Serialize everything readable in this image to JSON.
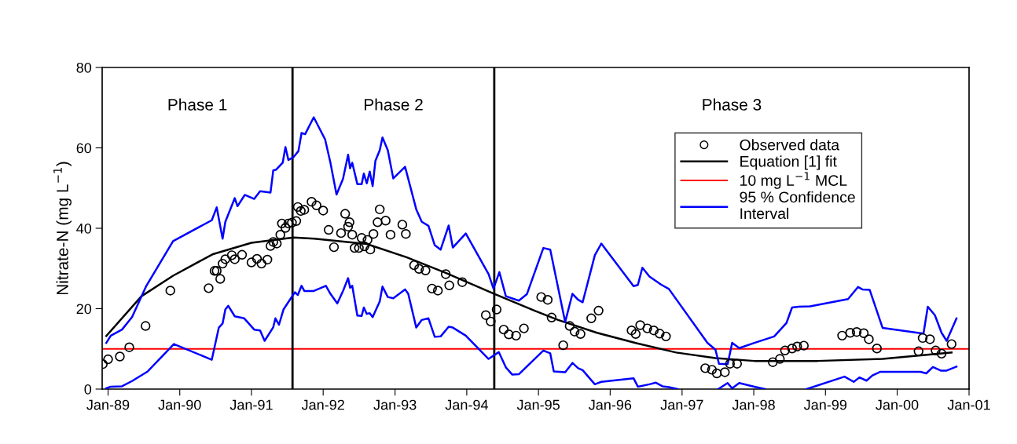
{
  "chart_data": {
    "type": "scatter",
    "ylabel": "Nitrate-N (mg L$^{−1}$)",
    "xlim": [
      "1988-12-02",
      "2001-01-01"
    ],
    "ylim": [
      0,
      80
    ],
    "xticks": [
      {
        "value": "1989-01-01",
        "label": "Jan-89"
      },
      {
        "value": "1990-01-01",
        "label": "Jan-90"
      },
      {
        "value": "1991-01-01",
        "label": "Jan-91"
      },
      {
        "value": "1992-01-01",
        "label": "Jan-92"
      },
      {
        "value": "1993-01-01",
        "label": "Jan-93"
      },
      {
        "value": "1994-01-01",
        "label": "Jan-94"
      },
      {
        "value": "1995-01-01",
        "label": "Jan-95"
      },
      {
        "value": "1996-01-01",
        "label": "Jan-96"
      },
      {
        "value": "1997-01-01",
        "label": "Jan-97"
      },
      {
        "value": "1998-01-01",
        "label": "Jan-98"
      },
      {
        "value": "1999-01-01",
        "label": "Jan-99"
      },
      {
        "value": "2000-01-01",
        "label": "Jan-00"
      },
      {
        "value": "2001-01-01",
        "label": "Jan-01"
      }
    ],
    "yticks": [
      0,
      20,
      40,
      60,
      80
    ],
    "grid": false,
    "legend": "top right",
    "series": [
      {
        "name": "Observed data",
        "marker": "circle",
        "color": "#000000",
        "x": [
          "1988-12-05",
          "1989-01-01",
          "1989-03-02",
          "1989-04-19",
          "1989-07-11",
          "1989-11-14",
          "1990-05-28",
          "1990-06-27",
          "1990-07-08",
          "1990-07-26",
          "1990-08-07",
          "1990-08-21",
          "1990-09-23",
          "1990-10-08",
          "1990-11-14",
          "1991-01-01",
          "1991-01-29",
          "1991-02-21",
          "1991-03-23",
          "1991-04-08",
          "1991-04-22",
          "1991-05-10",
          "1991-05-28",
          "1991-06-05",
          "1991-06-23",
          "1991-07-08",
          "1991-07-26",
          "1991-08-17",
          "1991-08-25",
          "1991-09-09",
          "1991-09-27",
          "1991-11-03",
          "1991-11-28",
          "1992-01-01",
          "1992-01-29",
          "1992-02-25",
          "1992-04-01",
          "1992-04-22",
          "1992-05-07",
          "1992-05-14",
          "1992-05-28",
          "1992-06-09",
          "1992-07-01",
          "1992-07-15",
          "1992-07-29",
          "1992-08-14",
          "1992-08-28",
          "1992-09-13",
          "1992-10-04",
          "1992-10-15",
          "1992-11-14",
          "1992-12-09",
          "1993-02-07",
          "1993-02-25",
          "1993-04-08",
          "1993-05-03",
          "1993-06-05",
          "1993-07-08",
          "1993-08-07",
          "1993-09-16",
          "1993-10-04",
          "1993-12-09",
          "1994-04-08",
          "1994-05-03",
          "1994-06-02",
          "1994-07-08",
          "1994-08-03",
          "1994-09-09",
          "1994-10-19",
          "1995-01-15",
          "1995-02-17",
          "1995-03-09",
          "1995-05-07",
          "1995-06-09",
          "1995-07-04",
          "1995-08-03",
          "1995-09-27",
          "1995-11-03",
          "1996-04-19",
          "1996-05-10",
          "1996-06-02",
          "1996-07-08",
          "1996-08-10",
          "1996-09-09",
          "1996-10-11",
          "1997-04-29",
          "1997-06-02",
          "1997-06-27",
          "1997-08-07",
          "1997-09-02",
          "1997-10-08",
          "1998-04-08",
          "1998-05-14",
          "1998-06-09",
          "1998-07-15",
          "1998-08-10",
          "1998-09-13",
          "1999-03-27",
          "1999-05-07",
          "1999-06-09",
          "1999-07-15",
          "1999-08-10",
          "1999-09-20",
          "2000-04-19",
          "2000-05-10",
          "2000-06-16",
          "2000-07-15",
          "2000-08-14",
          "2000-10-04"
        ],
        "values": [
          6.2,
          7.4,
          8.1,
          10.4,
          15.7,
          24.5,
          25.1,
          29.4,
          29.4,
          27.4,
          31.2,
          32.3,
          33.3,
          32.3,
          33.4,
          31.5,
          32.4,
          31.2,
          32.2,
          35.6,
          36.6,
          36.2,
          38.4,
          41.2,
          40.1,
          41.2,
          41.4,
          41.8,
          45.3,
          44.3,
          44.6,
          46.6,
          45.7,
          44.4,
          39.6,
          35.3,
          38.8,
          43.6,
          40.4,
          41.5,
          38.4,
          35.1,
          35.1,
          37.6,
          35.5,
          37.1,
          34.7,
          38.6,
          41.5,
          44.7,
          41.9,
          38.4,
          40.9,
          38.6,
          30.8,
          29.9,
          29.5,
          25.0,
          24.5,
          28.6,
          25.8,
          26.6,
          18.4,
          16.8,
          19.8,
          14.8,
          13.6,
          13.3,
          15.1,
          22.9,
          22.2,
          17.8,
          10.9,
          15.7,
          14.3,
          13.7,
          17.6,
          19.5,
          14.6,
          13.7,
          15.9,
          15.1,
          14.6,
          13.8,
          13.1,
          5.2,
          4.8,
          3.9,
          4.2,
          6.3,
          6.3,
          6.7,
          7.5,
          9.6,
          10.1,
          10.6,
          10.8,
          13.3,
          14.0,
          14.2,
          13.9,
          12.4,
          10.1,
          9.4,
          12.7,
          12.4,
          9.6,
          8.8,
          11.2
        ]
      },
      {
        "name": "Equation [1] fit",
        "type": "line",
        "color": "#000000",
        "x": [
          "1988-12-23",
          "1989-06-20",
          "1989-11-28",
          "1990-06-16",
          "1991-01-01",
          "1991-08-03",
          "1991-11-17",
          "1992-08-10",
          "1993-02-28",
          "1993-09-16",
          "1994-05-21",
          "1994-12-13",
          "1995-04-11",
          "1995-10-26",
          "1996-05-14",
          "1996-12-02",
          "1997-06-20",
          "1998-01-04",
          "1998-11-21",
          "1999-10-19",
          "2000-10-04"
        ],
        "values": [
          13.2,
          23.1,
          28.2,
          33.5,
          36.4,
          37.7,
          37.4,
          36.1,
          32.8,
          28.9,
          23.7,
          19.5,
          17.2,
          14.0,
          11.4,
          9.1,
          7.7,
          7.0,
          7.0,
          7.5,
          9.1
        ]
      },
      {
        "name": "95 % Confidence\nInterval",
        "type": "line",
        "color": "#0000ff",
        "x": [
          "1988-12-23",
          "1989-01-15",
          "1989-03-13",
          "1989-05-03",
          "1989-07-15",
          "1989-11-28",
          "1990-06-13",
          "1990-07-08",
          "1990-08-07",
          "1990-08-21",
          "1990-10-08",
          "1990-10-22",
          "1990-11-28",
          "1991-01-15",
          "1991-02-14",
          "1991-04-08",
          "1991-04-22",
          "1991-05-07",
          "1991-06-09",
          "1991-06-23",
          "1991-07-08",
          "1991-08-03",
          "1991-08-28",
          "1991-09-13",
          "1991-10-01",
          "1991-11-14",
          "1992-01-11",
          "1992-02-07",
          "1992-03-09",
          "1992-04-11",
          "1992-05-07",
          "1992-05-17",
          "1992-05-28",
          "1992-06-23",
          "1992-07-15",
          "1992-07-26",
          "1992-08-10",
          "1992-08-25",
          "1992-09-09",
          "1992-09-23",
          "1992-10-15",
          "1992-10-29",
          "1992-11-25",
          "1992-12-23",
          "1993-02-21",
          "1993-04-19",
          "1993-05-17",
          "1993-06-20",
          "1993-07-22",
          "1993-08-21",
          "1993-10-01",
          "1993-10-22",
          "1993-12-27",
          "1994-04-22",
          "1994-05-17",
          "1994-06-16",
          "1994-07-19",
          "1994-09-23",
          "1994-11-03",
          "1995-01-26",
          "1995-03-02",
          "1995-05-17",
          "1995-06-23",
          "1995-07-22",
          "1995-08-14",
          "1995-10-15",
          "1995-11-17",
          "1996-04-29",
          "1996-05-21",
          "1996-06-13",
          "1996-07-19",
          "1996-09-16",
          "1996-10-26",
          "1997-05-10",
          "1997-06-20",
          "1997-07-08",
          "1997-08-21",
          "1997-09-13",
          "1997-10-19",
          "1998-01-04",
          "1998-04-15",
          "1998-06-16",
          "1998-07-15",
          "1998-08-17",
          "1998-10-15",
          "1999-04-26",
          "1999-06-16",
          "1999-07-08",
          "1999-08-14",
          "1999-10-19",
          "2000-05-14",
          "2000-06-05",
          "2000-07-11",
          "2000-08-14",
          "2000-09-09",
          "2000-10-29"
        ],
        "values": [
          11.5,
          13.3,
          14.8,
          17.9,
          25.7,
          36.8,
          42.0,
          45.2,
          37.4,
          41.6,
          47.5,
          45.5,
          48.3,
          47.3,
          49.2,
          48.9,
          54.4,
          54.6,
          56.3,
          60.2,
          57.0,
          57.7,
          59.2,
          63.7,
          63.4,
          67.6,
          62.1,
          56.3,
          48.4,
          52.3,
          58.3,
          54.9,
          56.3,
          51.0,
          51.0,
          53.6,
          51.2,
          54.1,
          50.5,
          56.8,
          59.4,
          62.6,
          59.4,
          52.4,
          55.3,
          44.7,
          41.6,
          40.6,
          35.8,
          34.7,
          40.7,
          35.2,
          38.7,
          28.6,
          25.0,
          29.1,
          23.1,
          22.0,
          23.6,
          35.1,
          34.7,
          16.7,
          23.7,
          22.2,
          21.6,
          33.3,
          36.2,
          25.6,
          25.9,
          30.2,
          28.0,
          26.0,
          24.9,
          11.5,
          9.8,
          6.3,
          6.2,
          11.5,
          10.2,
          11.5,
          13.1,
          16.4,
          20.3,
          20.5,
          20.6,
          22.4,
          25.4,
          24.8,
          24.7,
          15.2,
          13.8,
          20.5,
          18.4,
          14.0,
          12.0,
          17.6
        ]
      },
      {
        "type": "line",
        "color": "#0000ff",
        "x": [
          "1988-12-23",
          "1989-01-15",
          "1989-03-13",
          "1989-05-03",
          "1989-07-22",
          "1989-12-02",
          "1990-06-13",
          "1990-07-19",
          "1990-08-07",
          "1990-08-21",
          "1990-09-05",
          "1990-10-08",
          "1990-11-25",
          "1991-01-15",
          "1991-02-14",
          "1991-03-09",
          "1991-04-22",
          "1991-05-03",
          "1991-05-21",
          "1991-06-13",
          "1991-08-10",
          "1991-08-25",
          "1991-09-13",
          "1991-09-27",
          "1991-11-14",
          "1992-01-15",
          "1992-02-07",
          "1992-03-13",
          "1992-04-11",
          "1992-05-07",
          "1992-05-17",
          "1992-05-28",
          "1992-06-23",
          "1992-07-15",
          "1992-07-26",
          "1992-08-10",
          "1992-08-25",
          "1992-09-09",
          "1992-10-15",
          "1992-10-29",
          "1992-11-25",
          "1992-12-23",
          "1993-02-21",
          "1993-03-09",
          "1993-04-19",
          "1993-05-17",
          "1993-06-20",
          "1993-07-22",
          "1993-08-21",
          "1993-10-01",
          "1993-10-22",
          "1993-12-27",
          "1994-04-22",
          "1994-06-13",
          "1994-07-19",
          "1994-08-21",
          "1994-09-23",
          "1995-01-26",
          "1995-03-02",
          "1995-03-20",
          "1995-05-17",
          "1995-06-23",
          "1995-07-22",
          "1995-08-14",
          "1995-10-15",
          "1995-11-17",
          "1996-04-29",
          "1996-05-21",
          "1996-07-19",
          "1996-08-21",
          "1996-09-23",
          "1996-10-26",
          "1996-12-09",
          "1997-03-13",
          "1997-07-04",
          "1997-08-21",
          "1997-09-13",
          "1997-10-19",
          "1998-01-04",
          "1998-02-28",
          "1998-06-13",
          "1998-09-27",
          "1999-04-08",
          "1999-05-25",
          "1999-06-23",
          "1999-07-29",
          "1999-08-28",
          "1999-10-08",
          "2000-04-29",
          "2000-05-28",
          "2000-07-01",
          "2000-08-10",
          "2000-09-09",
          "2000-10-29"
        ],
        "values": [
          0.2,
          0.6,
          0.7,
          2.0,
          4.4,
          11.2,
          7.3,
          15.3,
          16.3,
          19.8,
          20.7,
          18.1,
          17.6,
          14.8,
          14.6,
          12.0,
          15.4,
          17.6,
          16.0,
          19.8,
          24.1,
          23.4,
          25.7,
          24.4,
          24.4,
          25.7,
          23.7,
          21.3,
          24.4,
          27.6,
          25.2,
          25.7,
          18.3,
          18.2,
          20.3,
          18.7,
          18.9,
          17.9,
          21.8,
          25.5,
          22.9,
          22.6,
          24.8,
          23.7,
          15.3,
          17.2,
          17.6,
          13.0,
          13.1,
          15.5,
          15.3,
          13.3,
          7.5,
          9.2,
          5.4,
          3.6,
          3.7,
          9.6,
          8.9,
          4.4,
          4.2,
          6.5,
          5.2,
          4.7,
          1.2,
          1.8,
          2.7,
          0.6,
          1.2,
          1.6,
          0.7,
          0.5,
          0.0,
          null,
          0.0,
          1.5,
          0.2,
          1.5,
          0.6,
          0.0,
          null,
          0.0,
          3.1,
          1.8,
          2.9,
          2.1,
          3.4,
          4.3,
          4.3,
          3.9,
          5.5,
          4.6,
          4.6,
          5.6
        ]
      }
    ],
    "ref_lines": [
      {
        "axis": "y",
        "value": 10,
        "label": "10 mg L$^{−1}$ MCL",
        "color": "#ff0000",
        "line_style": "solid"
      },
      {
        "axis": "x",
        "value": "1991-07-29",
        "color": "#000000",
        "line_style": "solid"
      },
      {
        "axis": "x",
        "value": "1994-05-21",
        "color": "#000000",
        "line_style": "solid"
      }
    ],
    "annotations": [
      "Phase 1",
      "Phase 2",
      "Phase 3"
    ]
  }
}
